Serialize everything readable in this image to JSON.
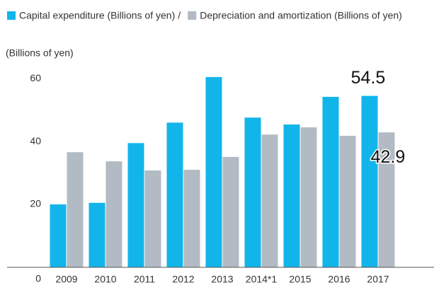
{
  "chart_data": {
    "type": "bar",
    "y_axis_label": "(Billions of yen)",
    "legend_separator": "/",
    "categories": [
      "2009",
      "2010",
      "2011",
      "2012",
      "2013",
      "2014*1",
      "2015",
      "2016",
      "2017"
    ],
    "series": [
      {
        "name": "Capital expenditure (Billions of yen)",
        "color": "#12b5ea",
        "values": [
          20.0,
          20.5,
          39.5,
          46.0,
          60.5,
          47.6,
          45.4,
          54.2,
          54.5
        ],
        "value_labels": [
          null,
          null,
          null,
          null,
          null,
          null,
          null,
          null,
          "54.5"
        ]
      },
      {
        "name": "Depreciation and amortization (Billions of yen)",
        "color": "#b2bbc3",
        "values": [
          36.6,
          33.7,
          30.8,
          31.0,
          35.1,
          42.2,
          44.5,
          41.8,
          42.9
        ],
        "value_labels": [
          null,
          null,
          null,
          null,
          null,
          null,
          null,
          null,
          "42.9"
        ]
      }
    ],
    "ylim": [
      0,
      62.5
    ],
    "yticks": [
      0,
      20,
      40,
      60
    ],
    "grid": false
  }
}
